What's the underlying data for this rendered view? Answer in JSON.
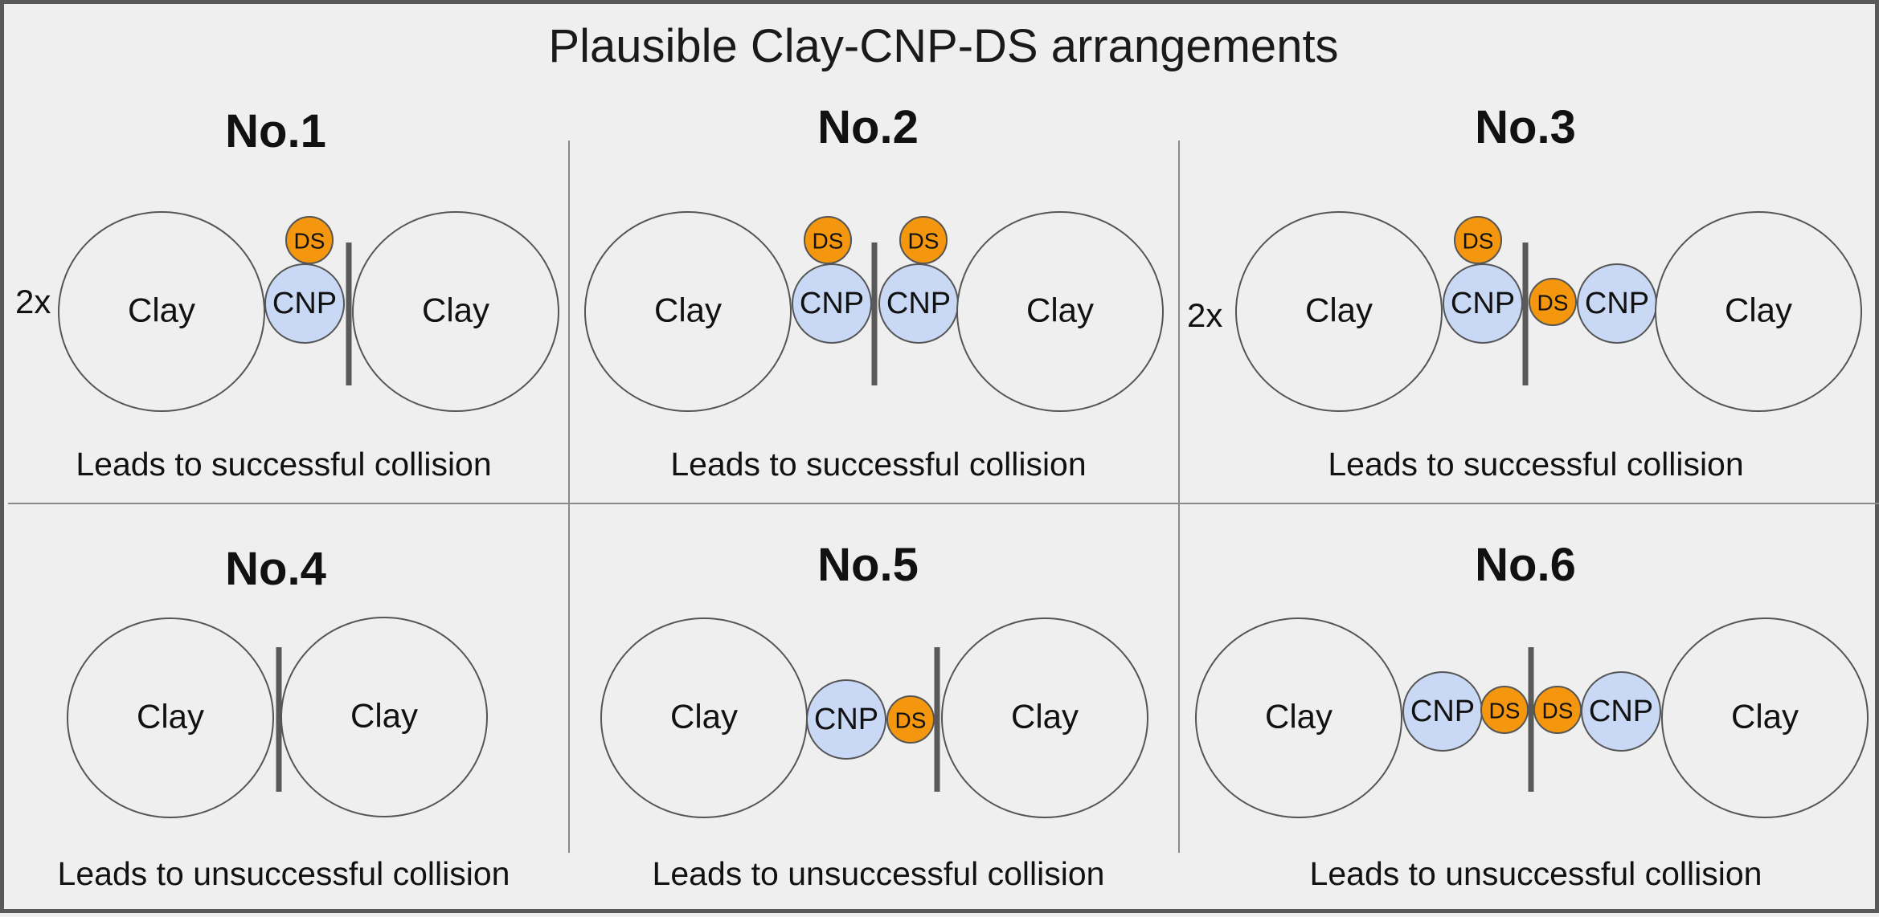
{
  "title": "Plausible Clay-CNP-DS arrangements",
  "multiplier": "2x",
  "labels": {
    "clay": "Clay",
    "cnp": "CNP",
    "ds": "DS"
  },
  "colors": {
    "clay_fill": "#efefef",
    "cnp_fill": "#c9d9f5",
    "ds_fill": "#f4970f",
    "outline": "#555555",
    "divider": "#595959"
  },
  "panels": [
    {
      "title": "No.1",
      "result": "Leads to successful collision"
    },
    {
      "title": "No.2",
      "result": "Leads to successful collision"
    },
    {
      "title": "No.3",
      "result": "Leads to successful collision"
    },
    {
      "title": "No.4",
      "result": "Leads to unsuccessful collision"
    },
    {
      "title": "No.5",
      "result": "Leads to unsuccessful collision"
    },
    {
      "title": "No.6",
      "result": "Leads to unsuccessful collision"
    }
  ]
}
